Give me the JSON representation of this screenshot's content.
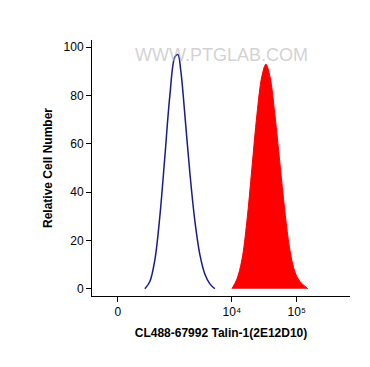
{
  "chart_data": {
    "type": "line",
    "xlabel": "CL488-67992 Talin-1(2E12D10)",
    "ylabel": "Relative Cell Number",
    "annotations": [
      {
        "text": "WWW.PTGLAB.COM"
      }
    ],
    "xlim": [
      -370,
      660000
    ],
    "xticks": [
      0,
      {
        "value": 10000,
        "label": "10⁴"
      },
      {
        "value": 100000,
        "label": "10⁵"
      }
    ],
    "ylim": [
      -3,
      103
    ],
    "yticks": [
      0,
      20,
      40,
      60,
      80,
      100
    ],
    "grid": false,
    "series": [
      {
        "type": "line",
        "color": "#1a1a8c",
        "x": [
          390,
          491,
          606,
          740,
          900,
          1084,
          1306,
          1457,
          1623,
          1876,
          2246,
          2689,
          3217,
          3844,
          4587,
          5480
        ],
        "values": [
          0,
          3,
          12,
          30,
          55,
          80,
          96,
          97,
          90,
          72,
          48,
          28,
          14,
          6,
          2,
          0
        ]
      },
      {
        "type": "area",
        "color": "#ff0000",
        "x": [
          10030,
          11970,
          14290,
          17060,
          20380,
          24320,
          29040,
          33480,
          38580,
          46040,
          55000,
          65670,
          78390,
          93630,
          111800,
          148400
        ],
        "values": [
          0,
          4,
          12,
          28,
          50,
          72,
          88,
          93,
          88,
          72,
          52,
          32,
          16,
          7,
          3,
          0
        ]
      }
    ]
  }
}
